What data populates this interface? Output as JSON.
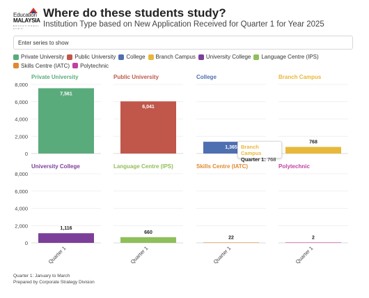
{
  "header": {
    "logo": {
      "line1": "Education",
      "line2": "MALAYSIA",
      "line3": "E D U C A T I O N  M A L A Y S I A"
    },
    "title": "Where do these students study?",
    "subtitle": "Institution Type based on New Application Received for Quarter 1 for Year 2025"
  },
  "series_input": {
    "placeholder": "Enter series to show"
  },
  "tooltip": {
    "series": "Branch Campus",
    "label": "Quarter 1:",
    "value": "768"
  },
  "footnote": {
    "line1": "Quarter 1: January to March",
    "line2": "Prepared by Corporate Strategy Division"
  },
  "chart_data": {
    "type": "bar",
    "layout": "small-multiples",
    "categories": [
      "Quarter 1"
    ],
    "ylim": [
      0,
      8000
    ],
    "yticks": [
      0,
      2000,
      4000,
      6000,
      8000
    ],
    "ytick_labels": [
      "0",
      "2,000",
      "4,000",
      "6,000",
      "8,000"
    ],
    "grid": true,
    "legend_position": "top-left",
    "series": [
      {
        "name": "Private University",
        "color": "#5aab7c",
        "values": [
          7561
        ],
        "label": "7,561"
      },
      {
        "name": "Public University",
        "color": "#c0574a",
        "values": [
          6041
        ],
        "label": "6,041"
      },
      {
        "name": "College",
        "color": "#4e6fb0",
        "values": [
          1365
        ],
        "label": "1,365"
      },
      {
        "name": "Branch Campus",
        "color": "#e8b83a",
        "values": [
          768
        ],
        "label": "768"
      },
      {
        "name": "University College",
        "color": "#7b3f99",
        "values": [
          1116
        ],
        "label": "1,116"
      },
      {
        "name": "Language Centre (IPS)",
        "color": "#8fbf5a",
        "values": [
          660
        ],
        "label": "660"
      },
      {
        "name": "Skills Centre (IATC)",
        "color": "#e0892e",
        "values": [
          22
        ],
        "label": "22"
      },
      {
        "name": "Polytechnic",
        "color": "#c23fa0",
        "values": [
          2
        ],
        "label": "2"
      }
    ]
  }
}
